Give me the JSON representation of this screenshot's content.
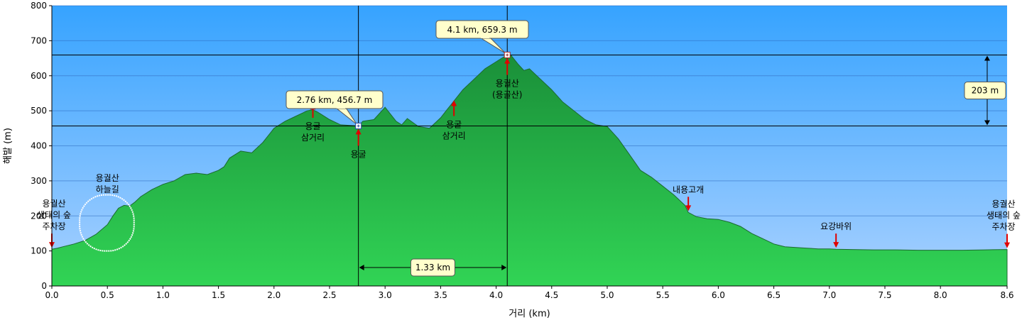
{
  "chart_data": {
    "type": "area",
    "xlabel": "거리  (km)",
    "ylabel": "해발 (m)",
    "xlim": [
      0,
      8.6
    ],
    "ylim": [
      0,
      800
    ],
    "x_ticks": [
      "0.0",
      "0.5",
      "1.0",
      "1.5",
      "2.0",
      "2.5",
      "3.0",
      "3.5",
      "4.0",
      "4.5",
      "5.0",
      "5.5",
      "6.0",
      "6.5",
      "7.0",
      "7.5",
      "8.0",
      "8.6"
    ],
    "x_tick_values": [
      0,
      0.5,
      1.0,
      1.5,
      2.0,
      2.5,
      3.0,
      3.5,
      4.0,
      4.5,
      5.0,
      5.5,
      6.0,
      6.5,
      7.0,
      7.5,
      8.0,
      8.6
    ],
    "y_ticks": [
      "0",
      "100",
      "200",
      "300",
      "400",
      "500",
      "600",
      "700",
      "800"
    ],
    "y_tick_values": [
      0,
      100,
      200,
      300,
      400,
      500,
      600,
      700,
      800
    ],
    "grid": true,
    "colors": {
      "sky_top": "#3aa6ff",
      "sky_bottom": "#a8d0ff",
      "terrain_top": "#1e9a3e",
      "terrain_bottom": "#2fcf52",
      "arrow": "#e00000",
      "callout_bg": "#ffffcc"
    },
    "series": [
      {
        "x": [
          0,
          0.05,
          0.1,
          0.2,
          0.3,
          0.4,
          0.5,
          0.55,
          0.6,
          0.65,
          0.7,
          0.75,
          0.8,
          0.9,
          1.0,
          1.1,
          1.2,
          1.3,
          1.4,
          1.5,
          1.55,
          1.6,
          1.7,
          1.8,
          1.9,
          2.0,
          2.1,
          2.2,
          2.3,
          2.35,
          2.4,
          2.5,
          2.6,
          2.7,
          2.76,
          2.8,
          2.9,
          3.0,
          3.05,
          3.1,
          3.15,
          3.2,
          3.3,
          3.4,
          3.5,
          3.55,
          3.6,
          3.7,
          3.8,
          3.9,
          4.0,
          4.05,
          4.1,
          4.13,
          4.2,
          4.25,
          4.3,
          4.4,
          4.5,
          4.6,
          4.7,
          4.8,
          4.9,
          5.0,
          5.1,
          5.2,
          5.3,
          5.4,
          5.5,
          5.6,
          5.7,
          5.73,
          5.8,
          5.9,
          6.0,
          6.1,
          6.2,
          6.3,
          6.4,
          6.5,
          6.6,
          6.7,
          6.8,
          6.9,
          7.0,
          7.06,
          7.2,
          7.4,
          7.6,
          7.8,
          8.0,
          8.2,
          8.4,
          8.6
        ],
        "y": [
          105,
          108,
          112,
          120,
          130,
          148,
          175,
          200,
          222,
          230,
          228,
          240,
          255,
          275,
          290,
          300,
          318,
          322,
          318,
          330,
          340,
          365,
          385,
          380,
          410,
          450,
          470,
          485,
          500,
          503,
          495,
          475,
          460,
          458,
          457,
          470,
          475,
          510,
          490,
          470,
          460,
          478,
          455,
          450,
          480,
          500,
          520,
          560,
          590,
          620,
          640,
          650,
          659,
          660,
          632,
          615,
          620,
          590,
          560,
          525,
          500,
          475,
          460,
          455,
          420,
          375,
          330,
          310,
          285,
          260,
          230,
          210,
          198,
          192,
          190,
          182,
          170,
          150,
          135,
          120,
          112,
          110,
          108,
          106,
          106,
          105,
          104,
          103,
          103,
          102,
          102,
          102,
          103,
          104
        ]
      }
    ],
    "markers": [
      {
        "x": 2.76,
        "y": 456.7,
        "label": "2.76 km, 456.7 m"
      },
      {
        "x": 4.1,
        "y": 659.3,
        "label": "4.1 km, 659.3 m"
      }
    ],
    "measure": {
      "distance_label": "1.33 km",
      "elevation_label": "203 m"
    },
    "annotations": [
      {
        "x": 0.0,
        "lines": [
          "용궐산",
          "생태의 숲",
          "주차장"
        ],
        "arrow": "down"
      },
      {
        "x": 0.5,
        "lines": [
          "용궐산",
          "하늘길"
        ],
        "arrow": "none"
      },
      {
        "x": 2.35,
        "lines": [
          "용굴",
          "삼거리"
        ],
        "arrow": "up"
      },
      {
        "x": 2.76,
        "lines": [
          "용굴"
        ],
        "arrow": "up"
      },
      {
        "x": 3.62,
        "lines": [
          "용굴",
          "삼거리"
        ],
        "arrow": "up"
      },
      {
        "x": 4.1,
        "lines": [
          "용궐산",
          "(용골산)"
        ],
        "arrow": "up"
      },
      {
        "x": 5.73,
        "lines": [
          "내용고개"
        ],
        "arrow": "down"
      },
      {
        "x": 7.06,
        "lines": [
          "요강바위"
        ],
        "arrow": "down"
      },
      {
        "x": 8.6,
        "lines": [
          "용궐산",
          "생태의 숲",
          "주차장"
        ],
        "arrow": "down"
      }
    ]
  }
}
